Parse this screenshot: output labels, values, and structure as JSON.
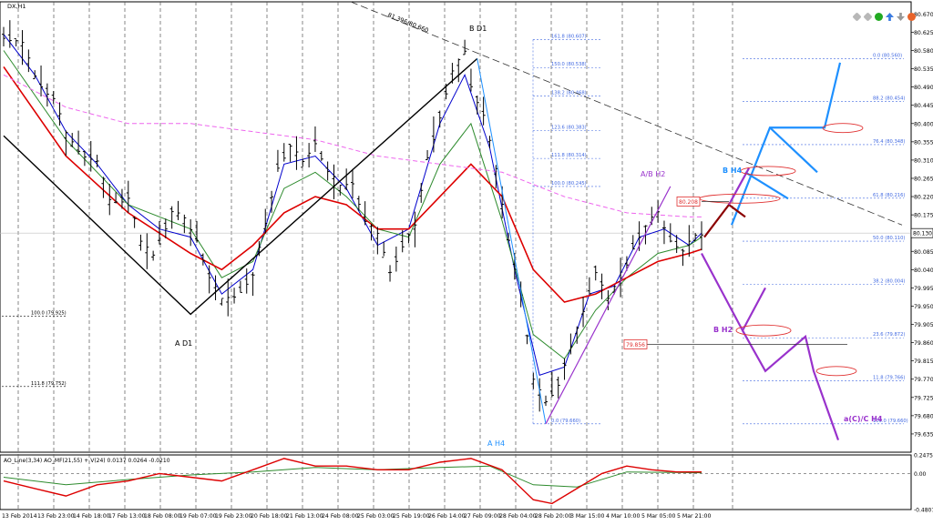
{
  "symbol": "DX,H1",
  "subwindow_label": "AO_Line(3,34) AO_MF(21,55) + V(24) 0.0137 0.0264 -0.0210",
  "current_price_label": "80.130",
  "toolbar_icons": [
    "grey-diamond-icon",
    "grey-diamond-icon",
    "green-dot-icon",
    "blue-up-arrow-icon",
    "grey-down-arrow-icon",
    "orange-gear-icon"
  ],
  "colors": {
    "price_bars": "#000000",
    "fast_ma": "#0000cc",
    "green_ma": "#2e8b2e",
    "red_ma": "#dd0000",
    "magenta_ma": "#ee66ee",
    "fib": "#4169e1",
    "wave_d1": "#000000",
    "wave_h4": "#1e90ff",
    "wave_h2": "#9932cc",
    "wave_dark": "#8b0000",
    "ellipse": "#e03030"
  },
  "chart_data": {
    "type": "line",
    "title": "DX,H1",
    "yaxis": {
      "ylim": [
        79.59,
        80.7
      ],
      "ticks": [
        "80.670",
        "80.625",
        "80.580",
        "80.535",
        "80.490",
        "80.445",
        "80.400",
        "80.355",
        "80.310",
        "80.265",
        "80.220",
        "80.175",
        "80.130",
        "80.085",
        "80.040",
        "79.995",
        "79.950",
        "79.905",
        "79.860",
        "79.815",
        "79.770",
        "79.725",
        "79.680",
        "79.635"
      ]
    },
    "xaxis": {
      "ticks": [
        "13 Feb 2014",
        "13 Feb 23:00",
        "14 Feb 18:00",
        "17 Feb 13:00",
        "18 Feb 08:00",
        "19 Feb 07:00",
        "19 Feb 23:00",
        "20 Feb 18:00",
        "21 Feb 13:00",
        "24 Feb 08:00",
        "25 Feb 03:00",
        "25 Feb 19:00",
        "26 Feb 14:00",
        "27 Feb 09:00",
        "28 Feb 04:00",
        "28 Feb 20:00",
        "3 Mar 15:00",
        "4 Mar 10:00",
        "5 Mar 05:00",
        "5 Mar 21:00"
      ]
    },
    "price_path": [
      [
        0,
        80.62
      ],
      [
        3,
        80.59
      ],
      [
        5,
        80.52
      ],
      [
        8,
        80.46
      ],
      [
        10,
        80.37
      ],
      [
        12,
        80.34
      ],
      [
        15,
        80.3
      ],
      [
        17,
        80.21
      ],
      [
        20,
        80.22
      ],
      [
        22,
        80.1
      ],
      [
        24,
        80.08
      ],
      [
        27,
        80.18
      ],
      [
        29,
        80.16
      ],
      [
        31,
        80.12
      ],
      [
        33,
        80.02
      ],
      [
        35,
        79.96
      ],
      [
        37,
        79.98
      ],
      [
        40,
        80.02
      ],
      [
        42,
        80.15
      ],
      [
        44,
        80.3
      ],
      [
        46,
        80.34
      ],
      [
        48,
        80.3
      ],
      [
        50,
        80.36
      ],
      [
        52,
        80.28
      ],
      [
        54,
        80.24
      ],
      [
        56,
        80.26
      ],
      [
        58,
        80.16
      ],
      [
        60,
        80.12
      ],
      [
        62,
        80.04
      ],
      [
        64,
        80.1
      ],
      [
        66,
        80.14
      ],
      [
        68,
        80.32
      ],
      [
        70,
        80.42
      ],
      [
        72,
        80.52
      ],
      [
        74,
        80.58
      ],
      [
        75,
        80.5
      ],
      [
        77,
        80.42
      ],
      [
        79,
        80.28
      ],
      [
        81,
        80.12
      ],
      [
        83,
        79.98
      ],
      [
        85,
        79.76
      ],
      [
        87,
        79.72
      ],
      [
        89,
        79.76
      ],
      [
        91,
        79.84
      ],
      [
        93,
        79.94
      ],
      [
        95,
        80.04
      ],
      [
        97,
        79.96
      ],
      [
        99,
        80.02
      ],
      [
        101,
        80.1
      ],
      [
        103,
        80.14
      ],
      [
        105,
        80.18
      ],
      [
        107,
        80.12
      ],
      [
        109,
        80.08
      ],
      [
        111,
        80.12
      ],
      [
        112,
        80.13
      ]
    ],
    "series": [
      {
        "name": "blue",
        "values": [
          [
            0,
            80.62
          ],
          [
            5,
            80.52
          ],
          [
            10,
            80.38
          ],
          [
            15,
            80.3
          ],
          [
            20,
            80.2
          ],
          [
            25,
            80.14
          ],
          [
            30,
            80.12
          ],
          [
            35,
            79.98
          ],
          [
            40,
            80.04
          ],
          [
            45,
            80.3
          ],
          [
            50,
            80.32
          ],
          [
            55,
            80.24
          ],
          [
            60,
            80.1
          ],
          [
            65,
            80.14
          ],
          [
            70,
            80.4
          ],
          [
            74,
            80.52
          ],
          [
            78,
            80.34
          ],
          [
            82,
            80.04
          ],
          [
            86,
            79.78
          ],
          [
            90,
            79.8
          ],
          [
            94,
            79.98
          ],
          [
            98,
            80.0
          ],
          [
            102,
            80.12
          ],
          [
            106,
            80.14
          ],
          [
            110,
            80.1
          ],
          [
            112,
            80.13
          ]
        ]
      },
      {
        "name": "green",
        "values": [
          [
            0,
            80.58
          ],
          [
            10,
            80.36
          ],
          [
            20,
            80.2
          ],
          [
            30,
            80.14
          ],
          [
            35,
            80.02
          ],
          [
            40,
            80.06
          ],
          [
            45,
            80.24
          ],
          [
            50,
            80.28
          ],
          [
            55,
            80.22
          ],
          [
            60,
            80.14
          ],
          [
            65,
            80.12
          ],
          [
            70,
            80.3
          ],
          [
            75,
            80.4
          ],
          [
            80,
            80.16
          ],
          [
            85,
            79.88
          ],
          [
            90,
            79.82
          ],
          [
            95,
            79.94
          ],
          [
            100,
            80.02
          ],
          [
            105,
            80.08
          ],
          [
            110,
            80.1
          ],
          [
            112,
            80.12
          ]
        ]
      },
      {
        "name": "red",
        "values": [
          [
            0,
            80.54
          ],
          [
            10,
            80.32
          ],
          [
            20,
            80.18
          ],
          [
            30,
            80.08
          ],
          [
            35,
            80.04
          ],
          [
            40,
            80.1
          ],
          [
            45,
            80.18
          ],
          [
            50,
            80.22
          ],
          [
            55,
            80.2
          ],
          [
            60,
            80.14
          ],
          [
            65,
            80.14
          ],
          [
            70,
            80.22
          ],
          [
            75,
            80.3
          ],
          [
            80,
            80.22
          ],
          [
            85,
            80.04
          ],
          [
            90,
            79.96
          ],
          [
            95,
            79.98
          ],
          [
            100,
            80.02
          ],
          [
            105,
            80.06
          ],
          [
            110,
            80.08
          ],
          [
            112,
            80.09
          ]
        ]
      },
      {
        "name": "magenta",
        "values": [
          [
            0,
            80.52
          ],
          [
            10,
            80.44
          ],
          [
            20,
            80.4
          ],
          [
            30,
            80.4
          ],
          [
            40,
            80.38
          ],
          [
            50,
            80.36
          ],
          [
            60,
            80.32
          ],
          [
            70,
            80.3
          ],
          [
            80,
            80.28
          ],
          [
            90,
            80.22
          ],
          [
            100,
            80.18
          ],
          [
            110,
            80.17
          ],
          [
            112,
            80.17
          ]
        ]
      }
    ],
    "oscillator": {
      "label": "AO_Line(3,34) AO_MF(21,55) + V(24) 0.0137 0.0264 -0.0210",
      "ticks": [
        "0.2475",
        "0.00",
        "-0.4807"
      ],
      "red": [
        [
          0,
          -0.1
        ],
        [
          5,
          -0.2
        ],
        [
          10,
          -0.3
        ],
        [
          15,
          -0.15
        ],
        [
          20,
          -0.1
        ],
        [
          25,
          0.0
        ],
        [
          30,
          -0.05
        ],
        [
          35,
          -0.1
        ],
        [
          40,
          0.05
        ],
        [
          45,
          0.2
        ],
        [
          50,
          0.1
        ],
        [
          55,
          0.1
        ],
        [
          60,
          0.05
        ],
        [
          65,
          0.05
        ],
        [
          70,
          0.15
        ],
        [
          75,
          0.2
        ],
        [
          80,
          0.05
        ],
        [
          85,
          -0.35
        ],
        [
          88,
          -0.4
        ],
        [
          92,
          -0.2
        ],
        [
          96,
          0.0
        ],
        [
          100,
          0.1
        ],
        [
          104,
          0.05
        ],
        [
          108,
          0.02
        ],
        [
          112,
          0.02
        ]
      ],
      "green": [
        [
          0,
          -0.05
        ],
        [
          10,
          -0.15
        ],
        [
          20,
          -0.08
        ],
        [
          30,
          -0.02
        ],
        [
          40,
          0.02
        ],
        [
          50,
          0.08
        ],
        [
          60,
          0.05
        ],
        [
          70,
          0.08
        ],
        [
          78,
          0.1
        ],
        [
          85,
          -0.15
        ],
        [
          92,
          -0.18
        ],
        [
          100,
          0.02
        ],
        [
          112,
          0.01
        ]
      ]
    },
    "fib_levels": [
      {
        "label": "161.8 (80.607)",
        "price": 80.607
      },
      {
        "label": "150.0 (80.538)",
        "price": 80.538
      },
      {
        "label": "138.2 (80.468)",
        "price": 80.468
      },
      {
        "label": "123.6 (80.383)",
        "price": 80.383
      },
      {
        "label": "111.8 (80.314)",
        "price": 80.314
      },
      {
        "label": "100.0 (80.245)",
        "price": 80.245
      },
      {
        "label": "0.0 (79.660)",
        "price": 79.66
      }
    ],
    "right_fib_levels": [
      {
        "label": "0.0 (80.560)",
        "price": 80.56
      },
      {
        "label": "88.2 (80.454)",
        "price": 80.454
      },
      {
        "label": "76.4 (80.348)",
        "price": 80.348
      },
      {
        "label": "61.8 (80.216)",
        "price": 80.216
      },
      {
        "label": "50.0 (80.110)",
        "price": 80.11
      },
      {
        "label": "38.2 (80.004)",
        "price": 80.004
      },
      {
        "label": "23.6 (79.872)",
        "price": 79.872
      },
      {
        "label": "11.8 (79.766)",
        "price": 79.766
      },
      {
        "label": "100.0 (79.660)",
        "price": 79.66
      }
    ],
    "left_fib_levels": [
      {
        "label": "100.0 (79.925)",
        "price": 79.925
      },
      {
        "label": "111.8 (79.752)",
        "price": 79.752
      }
    ],
    "trendline_label": "81.396/80.660",
    "price_boxes": [
      {
        "label": "80.208",
        "price": 80.208
      },
      {
        "label": "79.856",
        "price": 79.856
      }
    ],
    "wave_labels": {
      "a_d1": "A D1",
      "b_d1": "B D1",
      "a_h4": "A H4",
      "ab_h2": "A/B H2",
      "b_h4": "B H4",
      "b_h2": "B H2",
      "ac_h4": "a(C)/C H4"
    }
  }
}
